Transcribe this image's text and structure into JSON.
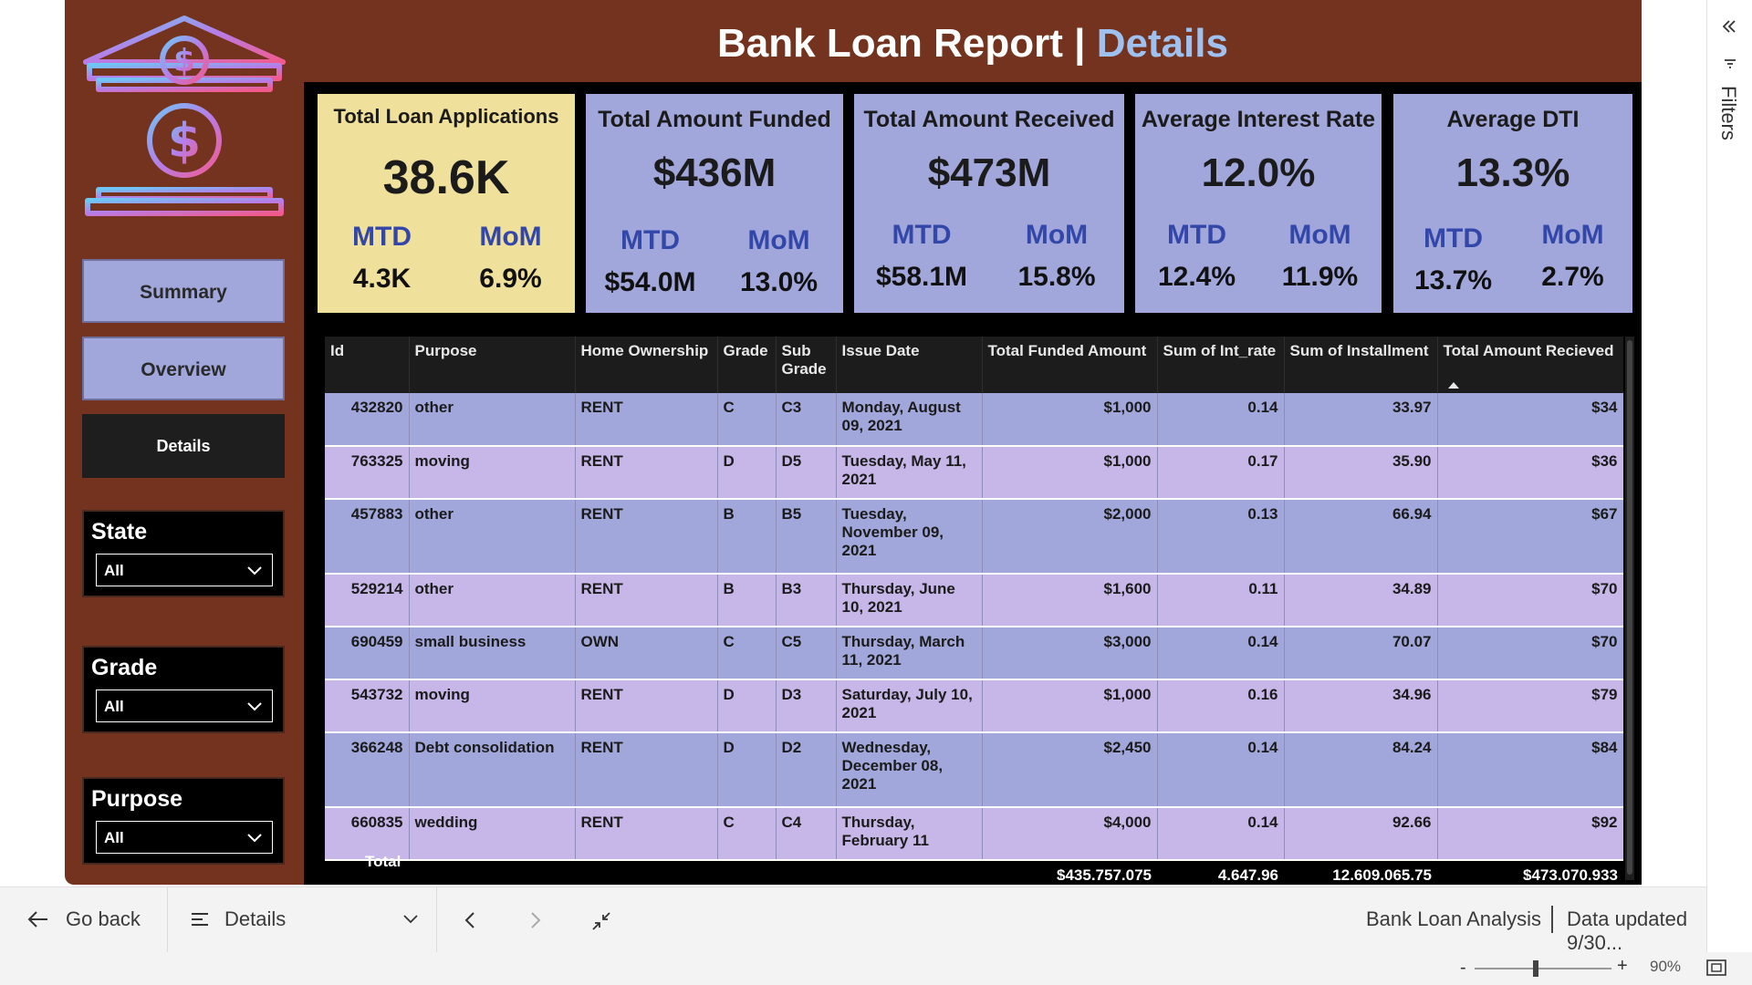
{
  "report": {
    "title_main": "Bank Loan Report | ",
    "title_accent": "Details"
  },
  "nav": {
    "summary": "Summary",
    "overview": "Overview",
    "details": "Details"
  },
  "slicers": [
    {
      "label": "State",
      "value": "All"
    },
    {
      "label": "Grade",
      "value": "All"
    },
    {
      "label": "Purpose",
      "value": "All"
    }
  ],
  "kpis": [
    {
      "title": "Total Loan Applications",
      "value": "38.6K",
      "mtd_label": "MTD",
      "mom_label": "MoM",
      "mtd": "4.3K",
      "mom": "6.9%",
      "color": "#efe09c"
    },
    {
      "title": "Total Amount Funded",
      "value": "$436M",
      "mtd_label": "MTD",
      "mom_label": "MoM",
      "mtd": "$54.0M",
      "mom": "13.0%",
      "color": "#a1a7db"
    },
    {
      "title": "Total Amount Received",
      "value": "$473M",
      "mtd_label": "MTD",
      "mom_label": "MoM",
      "mtd": "$58.1M",
      "mom": "15.8%",
      "color": "#a1a7db"
    },
    {
      "title": "Average Interest Rate",
      "value": "12.0%",
      "mtd_label": "MTD",
      "mom_label": "MoM",
      "mtd": "12.4%",
      "mom": "11.9%",
      "color": "#a1a7db"
    },
    {
      "title": "Average DTI",
      "value": "13.3%",
      "mtd_label": "MTD",
      "mom_label": "MoM",
      "mtd": "13.7%",
      "mom": "2.7%",
      "color": "#a1a7db"
    }
  ],
  "table": {
    "columns": [
      "Id",
      "Purpose",
      "Home Ownership",
      "Grade",
      "Sub Grade",
      "Issue Date",
      "Total Funded Amount",
      "Sum of Int_rate",
      "Sum of Installment",
      "Total Amount Recieved"
    ],
    "rows": [
      [
        "432820",
        "other",
        "RENT",
        "C",
        "C3",
        "Monday, August 09, 2021",
        "$1,000",
        "0.14",
        "33.97",
        "$34"
      ],
      [
        "763325",
        "moving",
        "RENT",
        "D",
        "D5",
        "Tuesday, May 11, 2021",
        "$1,000",
        "0.17",
        "35.90",
        "$36"
      ],
      [
        "457883",
        "other",
        "RENT",
        "B",
        "B5",
        "Tuesday, November 09, 2021",
        "$2,000",
        "0.13",
        "66.94",
        "$67"
      ],
      [
        "529214",
        "other",
        "RENT",
        "B",
        "B3",
        "Thursday, June 10, 2021",
        "$1,600",
        "0.11",
        "34.89",
        "$70"
      ],
      [
        "690459",
        "small business",
        "OWN",
        "C",
        "C5",
        "Thursday, March 11, 2021",
        "$3,000",
        "0.14",
        "70.07",
        "$70"
      ],
      [
        "543732",
        "moving",
        "RENT",
        "D",
        "D3",
        "Saturday, July 10, 2021",
        "$1,000",
        "0.16",
        "34.96",
        "$79"
      ],
      [
        "366248",
        "Debt consolidation",
        "RENT",
        "D",
        "D2",
        "Wednesday, December 08, 2021",
        "$2,450",
        "0.14",
        "84.24",
        "$84"
      ],
      [
        "660835",
        "wedding",
        "RENT",
        "C",
        "C4",
        "Thursday, February 11",
        "$4,000",
        "0.14",
        "92.66",
        "$92"
      ]
    ],
    "total": {
      "label": "Total",
      "funded": "$435,757,075",
      "int_rate": "4,647.96",
      "installment": "12,609,065.75",
      "received": "$473,070,933"
    }
  },
  "bottom": {
    "go_back": "Go back",
    "page": "Details",
    "app_name": "Bank Loan Analysis",
    "updated": "Data updated 9/30...",
    "zoom": "90%",
    "filters": "Filters"
  }
}
